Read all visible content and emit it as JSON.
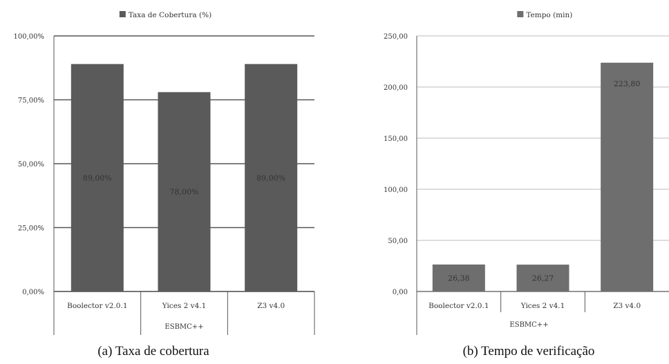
{
  "chart_data": [
    {
      "type": "bar",
      "legend": "Taxa de Cobertura (%)",
      "categories": [
        "Boolector v2.0.1",
        "Yices 2 v4.1",
        "Z3 v4.0"
      ],
      "group_label": "ESBMC++",
      "values": [
        89.0,
        78.0,
        89.0
      ],
      "value_labels": [
        "89,00%",
        "78,00%",
        "89,00%"
      ],
      "yticks": [
        "0,00%",
        "25,00%",
        "50,00%",
        "75,00%",
        "100,00%"
      ],
      "ylim": [
        0,
        100
      ],
      "caption": "(a) Taxa de cobertura",
      "bar_color": "#5a5a5a",
      "legend_position": "top"
    },
    {
      "type": "bar",
      "legend": "Tempo (min)",
      "categories": [
        "Boolector v2.0.1",
        "Yices 2 v4.1",
        "Z3 v4.0"
      ],
      "group_label": "ESBMC++",
      "values": [
        26.38,
        26.27,
        223.8
      ],
      "value_labels": [
        "26,38",
        "26,27",
        "223,80"
      ],
      "yticks": [
        "0,00",
        "50,00",
        "100,00",
        "150,00",
        "200,00",
        "250,00"
      ],
      "ylim": [
        0,
        250
      ],
      "caption": "(b) Tempo de verificação",
      "bar_color": "#6e6e6e",
      "legend_position": "top"
    }
  ]
}
